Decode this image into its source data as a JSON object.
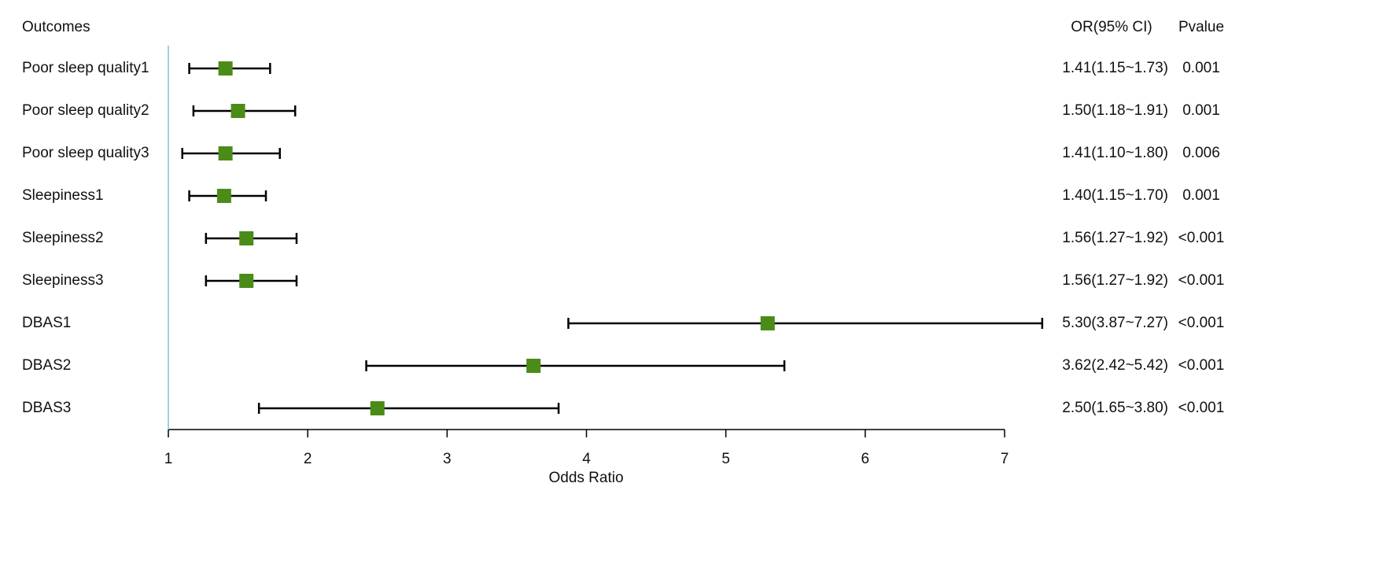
{
  "chart_data": {
    "type": "forest",
    "row_header": "Outcomes",
    "ci_header": "OR(95% CI)",
    "p_header": "Pvalue",
    "xlabel": "Odds Ratio",
    "categories": [
      "Poor sleep quality1",
      "Poor sleep quality2",
      "Poor sleep quality3",
      "Sleepiness1",
      "Sleepiness2",
      "Sleepiness3",
      "DBAS1",
      "DBAS2",
      "DBAS3"
    ],
    "values": [
      1.41,
      1.5,
      1.41,
      1.4,
      1.56,
      1.56,
      5.3,
      3.62,
      2.5
    ],
    "lower": [
      1.15,
      1.18,
      1.1,
      1.15,
      1.27,
      1.27,
      3.87,
      2.42,
      1.65
    ],
    "upper": [
      1.73,
      1.91,
      1.8,
      1.7,
      1.92,
      1.92,
      7.27,
      5.42,
      3.8
    ],
    "value_labels": [
      "1.41(1.15~1.73)",
      "1.50(1.18~1.91)",
      "1.41(1.10~1.80)",
      "1.40(1.15~1.70)",
      "1.56(1.27~1.92)",
      "1.56(1.27~1.92)",
      "5.30(3.87~7.27)",
      "3.62(2.42~5.42)",
      "2.50(1.65~3.80)"
    ],
    "p_values": [
      "0.001",
      "0.001",
      "0.006",
      "0.001",
      "<0.001",
      "<0.001",
      "<0.001",
      "<0.001",
      "<0.001"
    ],
    "xlim": [
      1,
      7
    ],
    "xticks": [
      1,
      2,
      3,
      4,
      5,
      6,
      7
    ],
    "reference": 1,
    "color": "#4b8b17",
    "reference_color": "#7ec4c8"
  }
}
